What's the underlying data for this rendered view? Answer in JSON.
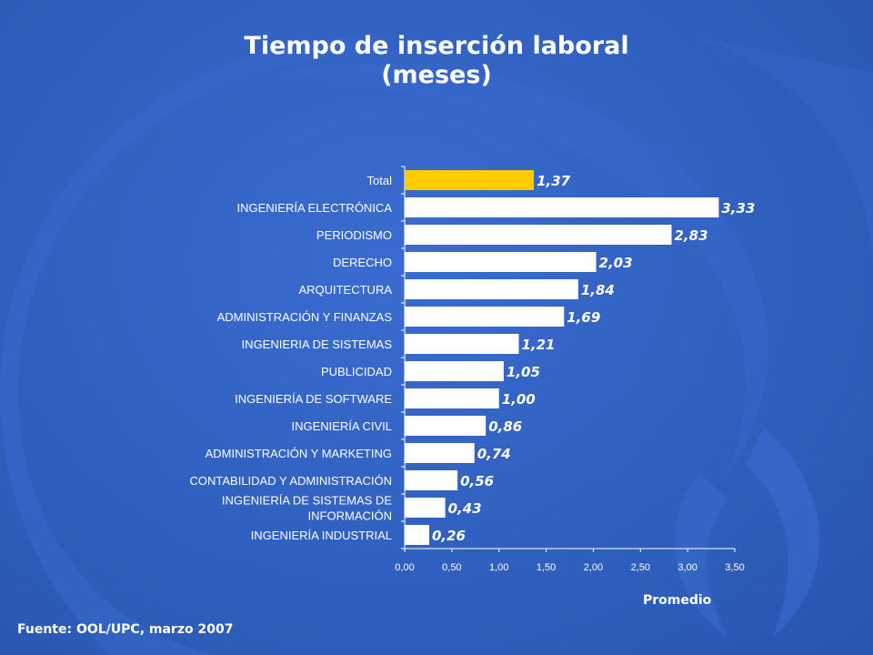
{
  "page": {
    "title_line1": "Tiempo de inserción laboral",
    "title_line2": "(meses)",
    "source": "Fuente: OOL/UPC, marzo 2007"
  },
  "colors": {
    "background": "#2f5fbd",
    "bar": "#ffffff",
    "highlight_bar": "#ffcc00",
    "text": "#ffffff"
  },
  "chart_data": {
    "type": "bar",
    "orientation": "horizontal",
    "title": "Tiempo de inserción laboral (meses)",
    "xlabel": "Promedio",
    "ylabel": "",
    "xlim": [
      0,
      3.5
    ],
    "xticks": [
      "0,00",
      "0,50",
      "1,00",
      "1,50",
      "2,00",
      "2,50",
      "3,00",
      "3,50"
    ],
    "grid": false,
    "legend": "none",
    "categories": [
      [
        "Total"
      ],
      [
        "INGENIERÍA ELECTRÓNICA"
      ],
      [
        "PERIODISMO"
      ],
      [
        "DERECHO"
      ],
      [
        "ARQUITECTURA"
      ],
      [
        "ADMINISTRACIÓN Y FINANZAS"
      ],
      [
        "INGENIERIA DE SISTEMAS"
      ],
      [
        "PUBLICIDAD"
      ],
      [
        "INGENIERÍA DE SOFTWARE"
      ],
      [
        "INGENIERÍA CIVIL"
      ],
      [
        "ADMINISTRACIÓN Y MARKETING"
      ],
      [
        "CONTABILIDAD Y ADMINISTRACIÓN"
      ],
      [
        "INGENIERÍA DE SISTEMAS DE",
        "INFORMACIÓN"
      ],
      [
        "INGENIERÍA INDUSTRIAL"
      ]
    ],
    "values": [
      1.37,
      3.33,
      2.83,
      2.03,
      1.84,
      1.69,
      1.21,
      1.05,
      1.0,
      0.86,
      0.74,
      0.56,
      0.43,
      0.26
    ],
    "value_labels": [
      "1,37",
      "3,33",
      "2,83",
      "2,03",
      "1,84",
      "1,69",
      "1,21",
      "1,05",
      "1,00",
      "0,86",
      "0,74",
      "0,56",
      "0,43",
      "0,26"
    ],
    "highlight_index": 0
  }
}
